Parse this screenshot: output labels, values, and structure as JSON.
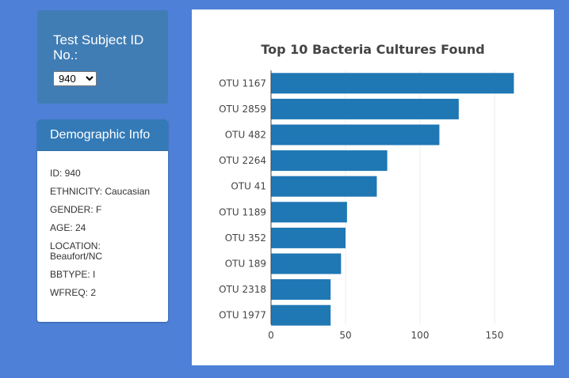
{
  "selector": {
    "title": "Test Subject ID No.:",
    "selected_value": "940"
  },
  "demographics": {
    "header": "Demographic Info",
    "rows": [
      "ID: 940",
      "ETHNICITY: Caucasian",
      "GENDER: F",
      "AGE: 24",
      "LOCATION: Beaufort/NC",
      "BBTYPE: I",
      "WFREQ: 2"
    ]
  },
  "colors": {
    "page_background": "#4d80d6",
    "selector_panel": "#417db5",
    "panel_header": "#337ab7",
    "bar": "#1f77b4"
  },
  "chart_data": {
    "type": "bar",
    "orientation": "horizontal",
    "title": "Top 10 Bacteria Cultures Found",
    "categories": [
      "OTU 1167",
      "OTU 2859",
      "OTU 482",
      "OTU 2264",
      "OTU 41",
      "OTU 1189",
      "OTU 352",
      "OTU 189",
      "OTU 2318",
      "OTU 1977"
    ],
    "values": [
      163,
      126,
      113,
      78,
      71,
      51,
      50,
      47,
      40,
      40
    ],
    "xlim": [
      0,
      170
    ],
    "xticks": [
      0,
      50,
      100,
      150
    ],
    "grid": true
  }
}
